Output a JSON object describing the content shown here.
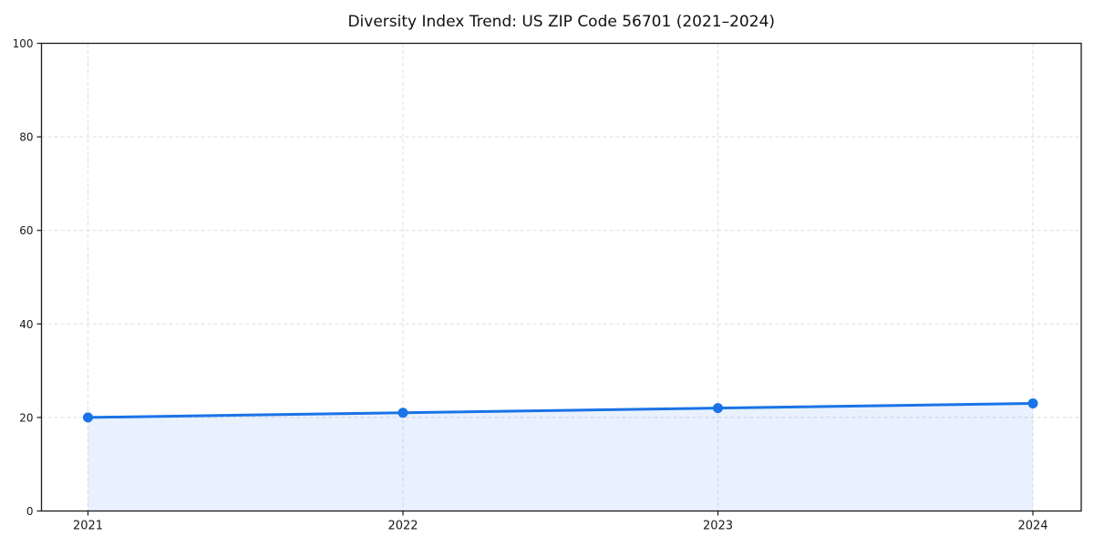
{
  "chart_data": {
    "type": "line",
    "title": "Diversity Index Trend: US ZIP Code 56701 (2021–2024)",
    "x": [
      2021,
      2022,
      2023,
      2024
    ],
    "x_tick_labels": [
      "2021",
      "2022",
      "2023",
      "2024"
    ],
    "series": [
      {
        "name": "Diversity Index",
        "values": [
          20,
          21,
          22,
          23
        ],
        "color": "#1a73e8",
        "marker": "circle",
        "area_fill": true,
        "fill_opacity": 0.1
      }
    ],
    "xlabel": "",
    "ylabel": "",
    "ylim": [
      0,
      100
    ],
    "yticks": [
      0,
      20,
      40,
      60,
      80,
      100
    ],
    "grid": {
      "visible": true,
      "style": "dashed",
      "color": "#dedede"
    },
    "legend_position": "none",
    "axis_color": "#1a1a1a",
    "tick_label_color": "#1a1a1a",
    "title_color": "#111111",
    "background": "#ffffff"
  }
}
